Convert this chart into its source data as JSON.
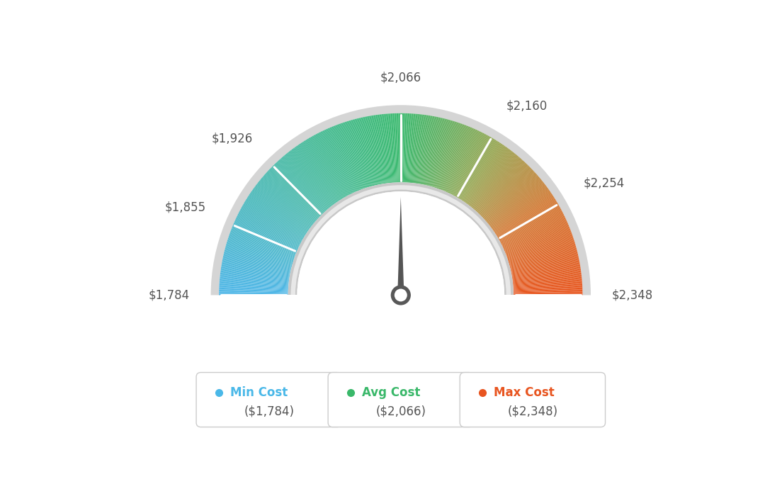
{
  "min_value": 1784,
  "max_value": 2348,
  "avg_value": 2066,
  "tick_labels": [
    "$1,784",
    "$1,855",
    "$1,926",
    "$2,066",
    "$2,160",
    "$2,254",
    "$2,348"
  ],
  "tick_values": [
    1784,
    1855,
    1926,
    2066,
    2160,
    2254,
    2348
  ],
  "legend_items": [
    {
      "label": "Min Cost",
      "value": "($1,784)",
      "color": "#4ab8e8"
    },
    {
      "label": "Avg Cost",
      "value": "($2,066)",
      "color": "#3ab86a"
    },
    {
      "label": "Max Cost",
      "value": "($2,348)",
      "color": "#e85520"
    }
  ],
  "gradient_stops": [
    [
      0.0,
      [
        78,
        182,
        232
      ]
    ],
    [
      0.25,
      [
        72,
        185,
        170
      ]
    ],
    [
      0.5,
      [
        58,
        185,
        110
      ]
    ],
    [
      0.68,
      [
        150,
        165,
        80
      ]
    ],
    [
      0.82,
      [
        210,
        120,
        50
      ]
    ],
    [
      1.0,
      [
        232,
        85,
        30
      ]
    ]
  ],
  "background_color": "#ffffff",
  "needle_color": "#555555",
  "outer_ring_color": "#d8d8d8",
  "inner_ring_color": "#e0e0e0"
}
